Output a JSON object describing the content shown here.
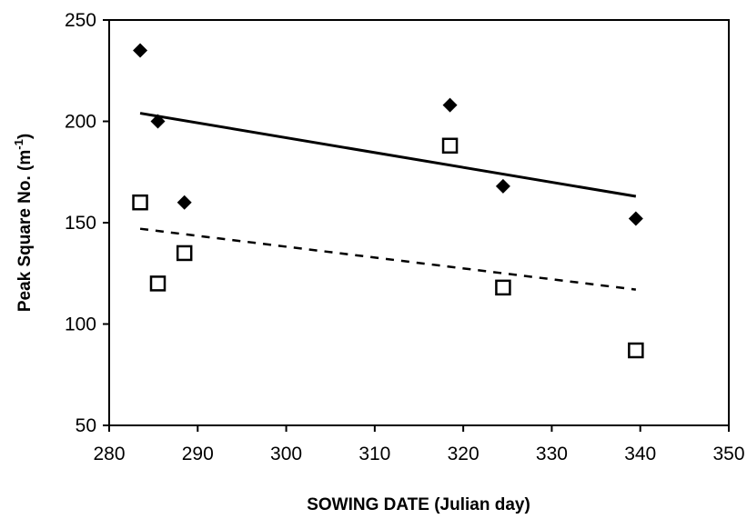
{
  "chart_data": {
    "type": "scatter",
    "title": "",
    "xlabel": "SOWING DATE (Julian day)",
    "ylabel_main": "Peak Square No. (m",
    "ylabel_sup": "-1",
    "ylabel_close": ")",
    "xlim": [
      280,
      350
    ],
    "ylim": [
      50,
      250
    ],
    "xticks": [
      280,
      290,
      300,
      310,
      320,
      330,
      340,
      350
    ],
    "yticks": [
      50,
      100,
      150,
      200,
      250
    ],
    "grid": false,
    "legend": "none",
    "series": [
      {
        "marker": "filled-diamond",
        "color": "#000000",
        "x": [
          283.5,
          285.5,
          288.5,
          318.5,
          324.5,
          339.5
        ],
        "y": [
          235,
          200,
          160,
          208,
          168,
          152
        ]
      },
      {
        "marker": "open-square",
        "color": "#000000",
        "x": [
          283.5,
          285.5,
          288.5,
          318.5,
          324.5,
          339.5
        ],
        "y": [
          160,
          120,
          135,
          188,
          118,
          87
        ]
      }
    ],
    "trendlines": [
      {
        "style": "solid",
        "x": [
          283.5,
          339.5
        ],
        "y": [
          204,
          163
        ]
      },
      {
        "style": "dashed",
        "x": [
          283.5,
          339.5
        ],
        "y": [
          147,
          117
        ]
      }
    ]
  }
}
